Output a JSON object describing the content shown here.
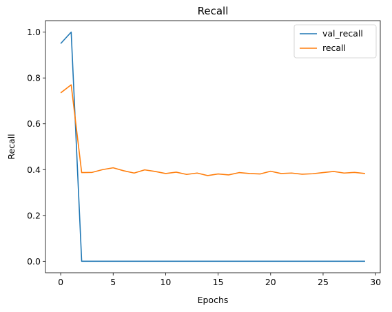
{
  "chart_data": {
    "type": "line",
    "title": "Recall",
    "xlabel": "Epochs",
    "ylabel": "Recall",
    "xlim": [
      -1.45,
      30.45
    ],
    "ylim": [
      -0.05,
      1.05
    ],
    "xticks": [
      0,
      5,
      10,
      15,
      20,
      25,
      30
    ],
    "yticks": [
      0.0,
      0.2,
      0.4,
      0.6,
      0.8,
      1.0
    ],
    "grid": false,
    "legend_position": "top-right",
    "x": [
      0,
      1,
      2,
      3,
      4,
      5,
      6,
      7,
      8,
      9,
      10,
      11,
      12,
      13,
      14,
      15,
      16,
      17,
      18,
      19,
      20,
      21,
      22,
      23,
      24,
      25,
      26,
      27,
      28,
      29
    ],
    "series": [
      {
        "name": "val_recall",
        "color": "#1f77b4",
        "values": [
          0.95,
          1.0,
          0.0,
          0.0,
          0.0,
          0.0,
          0.0,
          0.0,
          0.0,
          0.0,
          0.0,
          0.0,
          0.0,
          0.0,
          0.0,
          0.0,
          0.0,
          0.0,
          0.0,
          0.0,
          0.0,
          0.0,
          0.0,
          0.0,
          0.0,
          0.0,
          0.0,
          0.0,
          0.0,
          0.0
        ]
      },
      {
        "name": "recall",
        "color": "#ff7f0e",
        "values": [
          0.735,
          0.77,
          0.387,
          0.388,
          0.4,
          0.408,
          0.395,
          0.385,
          0.399,
          0.392,
          0.383,
          0.389,
          0.379,
          0.385,
          0.374,
          0.381,
          0.377,
          0.387,
          0.383,
          0.381,
          0.393,
          0.383,
          0.385,
          0.38,
          0.382,
          0.387,
          0.392,
          0.385,
          0.388,
          0.383
        ]
      }
    ]
  }
}
